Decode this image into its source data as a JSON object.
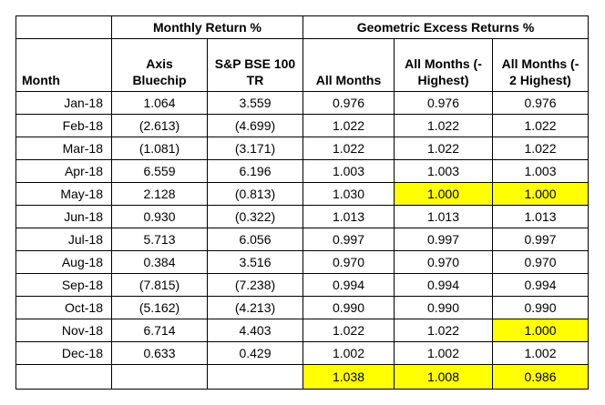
{
  "table": {
    "groups": [
      "Monthly Return %",
      "Geometric Excess Returns %"
    ],
    "columns": [
      "Month",
      "Axis Bluechip",
      "S&P BSE 100 TR",
      "All Months",
      "All Months (-Highest)",
      "All Months (- 2 Highest)"
    ],
    "rows": [
      [
        "Jan-18",
        "1.064",
        "3.559",
        "0.976",
        "0.976",
        "0.976"
      ],
      [
        "Feb-18",
        "(2.613)",
        "(4.699)",
        "1.022",
        "1.022",
        "1.022"
      ],
      [
        "Mar-18",
        "(1.081)",
        "(3.171)",
        "1.022",
        "1.022",
        "1.022"
      ],
      [
        "Apr-18",
        "6.559",
        "6.196",
        "1.003",
        "1.003",
        "1.003"
      ],
      [
        "May-18",
        "2.128",
        "(0.813)",
        "1.030",
        "1.000",
        "1.000"
      ],
      [
        "Jun-18",
        "0.930",
        "(0.322)",
        "1.013",
        "1.013",
        "1.013"
      ],
      [
        "Jul-18",
        "5.713",
        "6.056",
        "0.997",
        "0.997",
        "0.997"
      ],
      [
        "Aug-18",
        "0.384",
        "3.516",
        "0.970",
        "0.970",
        "0.970"
      ],
      [
        "Sep-18",
        "(7.815)",
        "(7.238)",
        "0.994",
        "0.994",
        "0.994"
      ],
      [
        "Oct-18",
        "(5.162)",
        "(4.213)",
        "0.990",
        "0.990",
        "0.990"
      ],
      [
        "Nov-18",
        "6.714",
        "4.403",
        "1.022",
        "1.022",
        "1.000"
      ],
      [
        "Dec-18",
        "0.633",
        "0.429",
        "1.002",
        "1.002",
        "1.002"
      ]
    ],
    "totals": [
      "1.038",
      "1.008",
      "0.986"
    ]
  }
}
